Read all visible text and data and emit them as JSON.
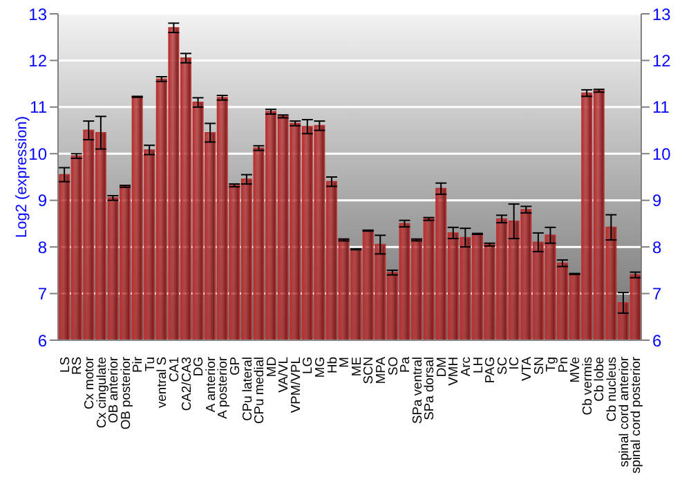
{
  "chart_data": {
    "type": "bar",
    "ylabel": "Log2 (expression)",
    "categories": [
      "LS",
      "RS",
      "Cx motor",
      "Cx cingulate",
      "OB anterior",
      "OB posterior",
      "Pir",
      "Tu",
      "ventral S",
      "CA1",
      "CA2/CA3",
      "DG",
      "A anterior",
      "A posterior",
      "GP",
      "CPu lateral",
      "CPu medial",
      "MD",
      "VA/VL",
      "VPM/VPL",
      "LG",
      "MG",
      "Hb",
      "M",
      "ME",
      "SCN",
      "MPA",
      "SO",
      "Pa",
      "SPa ventral",
      "SPa dorsal",
      "DM",
      "VMH",
      "Arc",
      "LH",
      "PAG",
      "SC",
      "IC",
      "VTA",
      "SN",
      "Tg",
      "Pn",
      "MVe",
      "Cb vermis",
      "Cb lobe",
      "Cb nucleus",
      "spinal cord anterior",
      "spinal cord posterior"
    ],
    "values": [
      9.55,
      9.95,
      10.5,
      10.45,
      9.05,
      9.3,
      11.22,
      10.08,
      11.6,
      12.7,
      12.05,
      11.1,
      10.45,
      11.2,
      9.32,
      9.45,
      10.12,
      10.9,
      10.8,
      10.65,
      10.58,
      10.6,
      9.4,
      8.15,
      7.95,
      8.35,
      8.05,
      7.45,
      8.5,
      8.15,
      8.6,
      9.25,
      8.3,
      8.2,
      8.28,
      8.05,
      8.6,
      8.55,
      8.8,
      8.1,
      8.25,
      7.65,
      7.42,
      11.3,
      11.35,
      8.42,
      6.8,
      7.4
    ],
    "errors": [
      0.15,
      0.05,
      0.2,
      0.35,
      0.05,
      0.02,
      0.01,
      0.1,
      0.05,
      0.1,
      0.1,
      0.1,
      0.2,
      0.05,
      0.03,
      0.1,
      0.05,
      0.05,
      0.03,
      0.05,
      0.15,
      0.1,
      0.1,
      0.02,
      0.01,
      0.01,
      0.2,
      0.05,
      0.07,
      0.02,
      0.03,
      0.12,
      0.12,
      0.2,
      0.01,
      0.03,
      0.08,
      0.37,
      0.07,
      0.2,
      0.17,
      0.07,
      0.01,
      0.07,
      0.03,
      0.27,
      0.22,
      0.06
    ],
    "color": "#b83232",
    "ylim": [
      6,
      13
    ],
    "yticks": [
      6,
      7,
      8,
      9,
      10,
      11,
      12,
      13
    ],
    "y2lim": [
      6,
      13
    ],
    "y2ticks": [
      6,
      7,
      8,
      9,
      10,
      11,
      12,
      13
    ],
    "grid": "y"
  }
}
